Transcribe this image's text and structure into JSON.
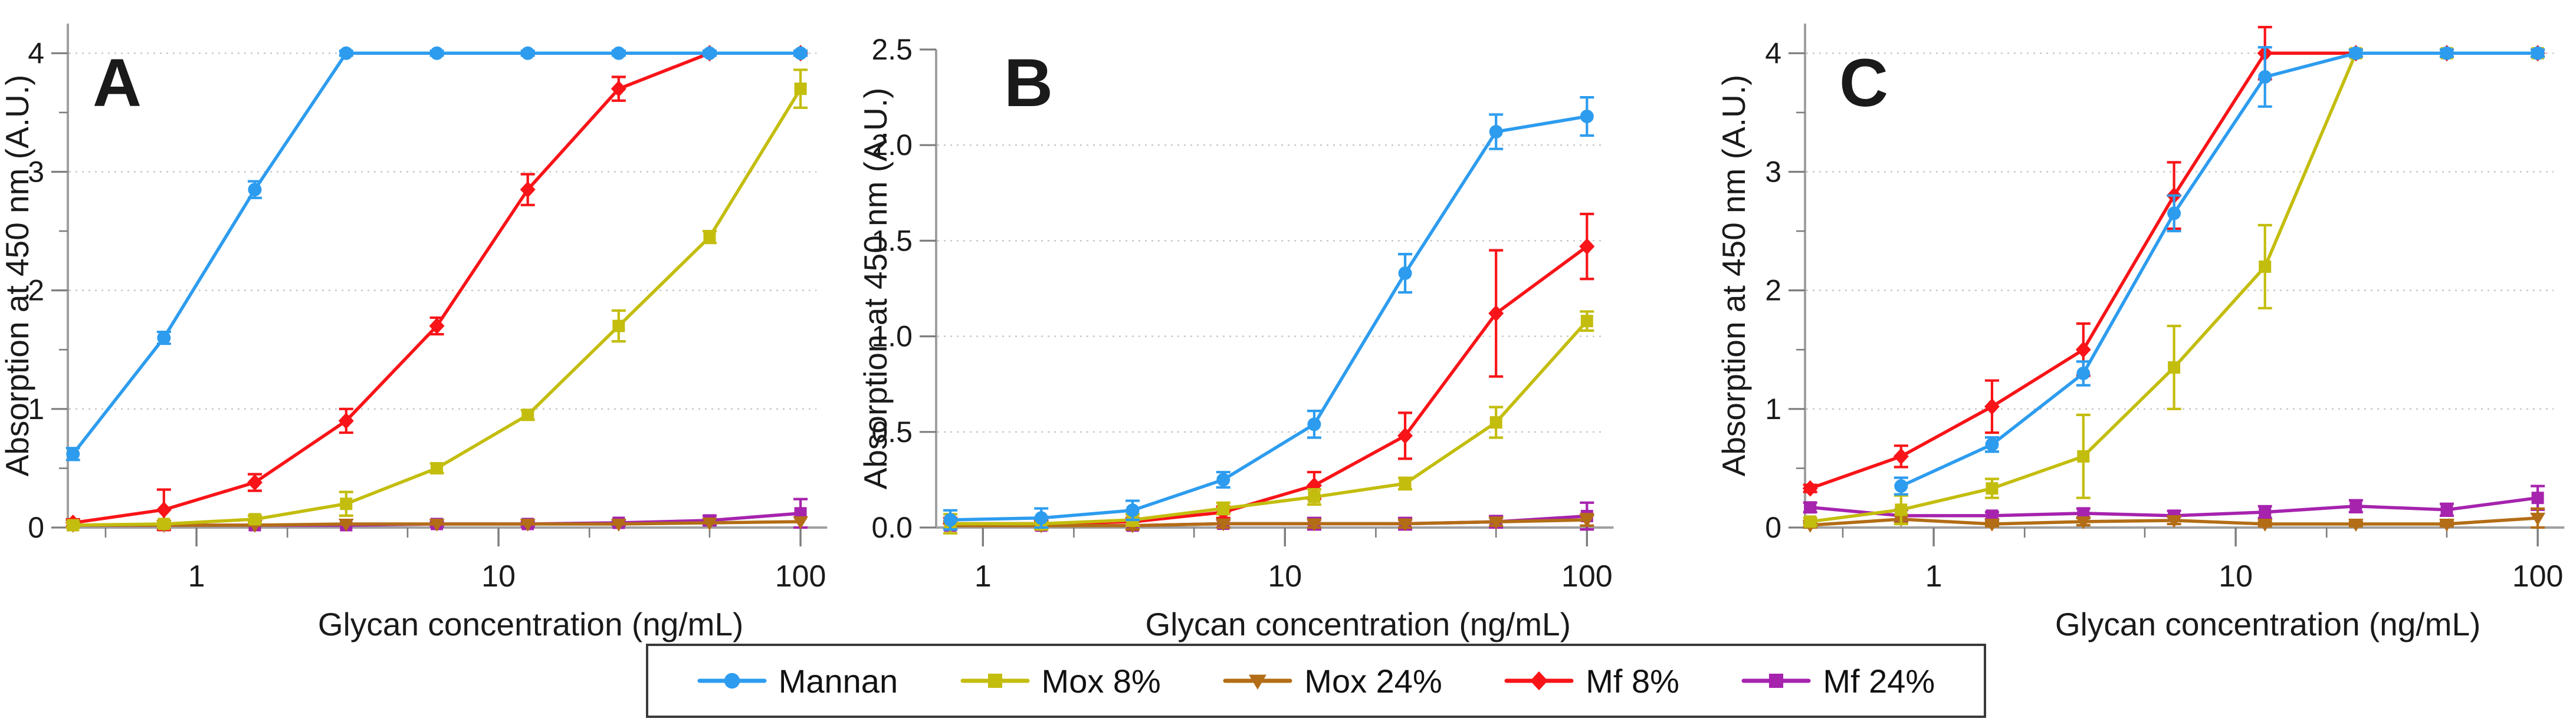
{
  "legend": {
    "entries": [
      {
        "label": "Mannan",
        "color": "#2d9cef",
        "marker": "circle"
      },
      {
        "label": "Mox 8%",
        "color": "#c3bd0e",
        "marker": "square"
      },
      {
        "label": "Mox 24%",
        "color": "#b36d16",
        "marker": "triangle-down"
      },
      {
        "label": "Mf 8%",
        "color": "#f81418",
        "marker": "diamond"
      },
      {
        "label": "Mf 24%",
        "color": "#a623ae",
        "marker": "square"
      }
    ]
  },
  "style": {
    "axis_color": "#a0a0a0",
    "tick_color": "#7d7d7d",
    "grid_color": "#c6c6c6",
    "label_color": "#1a1a1a",
    "background": "#ffffff"
  },
  "chart_data": {
    "type": "line",
    "xscale": "log",
    "xlabel": "Glycan concentration (ng/mL)",
    "ylabel": "Absorption at 450 nm (A.U.)",
    "legend_position": "bottom",
    "grid": "horizontal-dotted",
    "panels": [
      {
        "id": "A",
        "label": "A",
        "xlim": [
          0.375,
          113
        ],
        "ylim": [
          0,
          4.25
        ],
        "yticks": {
          "values": [
            0,
            1,
            2,
            3,
            4
          ],
          "labels": [
            "0",
            "1",
            "2",
            "3",
            "4"
          ],
          "minor_step": 0.5,
          "grid": [
            1,
            2,
            3,
            4
          ]
        },
        "xticks": {
          "major": [
            {
              "v": 1,
              "label": "1"
            },
            {
              "v": 10,
              "label": "10"
            },
            {
              "v": 100,
              "label": "100"
            }
          ],
          "minor": [
            0.5,
            2,
            5,
            20,
            50
          ]
        },
        "x": [
          0.39,
          0.78,
          1.56,
          3.13,
          6.25,
          12.5,
          25,
          50,
          100
        ],
        "series": [
          {
            "name": "Mannan",
            "values": [
              0.62,
              1.6,
              2.85,
              4.0,
              4.0,
              4.0,
              4.0,
              4.0,
              4.0
            ],
            "errors": [
              0.05,
              0.05,
              0.07,
              0.02,
              0.02,
              0.02,
              0.02,
              0.02,
              0.02
            ]
          },
          {
            "name": "Mox 8%",
            "values": [
              0.02,
              0.03,
              0.07,
              0.2,
              0.5,
              0.95,
              1.7,
              2.45,
              3.7
            ],
            "errors": [
              0.02,
              0.02,
              0.03,
              0.1,
              0.04,
              0.04,
              0.13,
              0.05,
              0.16
            ]
          },
          {
            "name": "Mox 24%",
            "values": [
              0.02,
              0.02,
              0.02,
              0.03,
              0.03,
              0.03,
              0.03,
              0.04,
              0.05
            ],
            "errors": [
              0.01,
              0.01,
              0.01,
              0.01,
              0.01,
              0.01,
              0.01,
              0.01,
              0.01
            ]
          },
          {
            "name": "Mf 8%",
            "values": [
              0.04,
              0.15,
              0.38,
              0.9,
              1.7,
              2.85,
              3.7,
              4.0,
              4.0
            ],
            "errors": [
              0.03,
              0.17,
              0.07,
              0.1,
              0.07,
              0.13,
              0.1,
              0.02,
              0.02
            ]
          },
          {
            "name": "Mf 24%",
            "values": [
              0.02,
              0.02,
              0.02,
              0.02,
              0.03,
              0.03,
              0.04,
              0.06,
              0.12
            ],
            "errors": [
              0.01,
              0.01,
              0.01,
              0.01,
              0.02,
              0.02,
              0.02,
              0.04,
              0.12
            ]
          }
        ]
      },
      {
        "id": "B",
        "label": "B",
        "xlim": [
          0.7,
          113
        ],
        "ylim": [
          0,
          2.5
        ],
        "yticks": {
          "values": [
            0,
            0.5,
            1,
            1.5,
            2,
            2.5
          ],
          "labels": [
            "0.0",
            "0.5",
            "1.0",
            "1.5",
            "2.0",
            "2.5"
          ],
          "minor_step": 0,
          "grid": [
            0.5,
            1,
            1.5,
            2
          ]
        },
        "xticks": {
          "major": [
            {
              "v": 1,
              "label": "1"
            },
            {
              "v": 10,
              "label": "10"
            },
            {
              "v": 100,
              "label": "100"
            }
          ],
          "minor": [
            2,
            5,
            20,
            50
          ]
        },
        "x": [
          0.78,
          1.56,
          3.13,
          6.25,
          12.5,
          25,
          50,
          100
        ],
        "series": [
          {
            "name": "Mannan",
            "values": [
              0.04,
              0.05,
              0.09,
              0.25,
              0.54,
              1.33,
              2.07,
              2.15
            ],
            "errors": [
              0.05,
              0.05,
              0.05,
              0.04,
              0.07,
              0.1,
              0.09,
              0.1
            ]
          },
          {
            "name": "Mox 8%",
            "values": [
              0.02,
              0.02,
              0.04,
              0.1,
              0.16,
              0.23,
              0.55,
              1.08
            ],
            "errors": [
              0.05,
              0.03,
              0.03,
              0.03,
              0.04,
              0.03,
              0.08,
              0.05
            ]
          },
          {
            "name": "Mox 24%",
            "values": [
              0.01,
              0.01,
              0.01,
              0.02,
              0.02,
              0.02,
              0.03,
              0.04
            ],
            "errors": [
              0.02,
              0.02,
              0.02,
              0.02,
              0.02,
              0.02,
              0.02,
              0.03
            ]
          },
          {
            "name": "Mf 8%",
            "values": [
              0.02,
              0.02,
              0.03,
              0.08,
              0.22,
              0.48,
              1.12,
              1.47
            ],
            "errors": [
              0.03,
              0.02,
              0.02,
              0.03,
              0.07,
              0.12,
              0.33,
              0.17
            ]
          },
          {
            "name": "Mf 24%",
            "values": [
              0.01,
              0.01,
              0.01,
              0.02,
              0.02,
              0.02,
              0.03,
              0.06
            ],
            "errors": [
              0.02,
              0.02,
              0.02,
              0.02,
              0.03,
              0.03,
              0.03,
              0.07
            ]
          }
        ]
      },
      {
        "id": "C",
        "label": "C",
        "xlim": [
          0.375,
          113
        ],
        "ylim": [
          0,
          4.25
        ],
        "yticks": {
          "values": [
            0,
            1,
            2,
            3,
            4
          ],
          "labels": [
            "0",
            "1",
            "2",
            "3",
            "4"
          ],
          "minor_step": 0.5,
          "grid": [
            1,
            2,
            3,
            4
          ]
        },
        "xticks": {
          "major": [
            {
              "v": 1,
              "label": "1"
            },
            {
              "v": 10,
              "label": "10"
            },
            {
              "v": 100,
              "label": "100"
            }
          ],
          "minor": [
            0.5,
            2,
            5,
            20,
            50
          ]
        },
        "x": [
          0.39,
          0.78,
          1.56,
          3.13,
          6.25,
          12.5,
          25,
          50,
          100
        ],
        "series": [
          {
            "name": "Mannan",
            "values": [
              null,
              0.35,
              0.7,
              1.3,
              2.65,
              3.8,
              4.0,
              4.0,
              4.0
            ],
            "errors": [
              0,
              0.07,
              0.06,
              0.1,
              0.15,
              0.25,
              0.03,
              0.03,
              0.03
            ]
          },
          {
            "name": "Mox 8%",
            "values": [
              0.05,
              0.15,
              0.33,
              0.6,
              1.35,
              2.2,
              4.0,
              4.0,
              4.0
            ],
            "errors": [
              0.03,
              0.12,
              0.08,
              0.35,
              0.35,
              0.35,
              0.03,
              0.03,
              0.03
            ]
          },
          {
            "name": "Mox 24%",
            "values": [
              0.02,
              0.07,
              0.03,
              0.05,
              0.06,
              0.03,
              0.03,
              0.03,
              0.08
            ],
            "errors": [
              0.02,
              0.03,
              0.02,
              0.03,
              0.03,
              0.02,
              0.02,
              0.02,
              0.08
            ]
          },
          {
            "name": "Mf 8%",
            "values": [
              0.33,
              0.6,
              1.02,
              1.5,
              2.8,
              4.0,
              4.0,
              4.0,
              4.0
            ],
            "errors": [
              0.03,
              0.09,
              0.22,
              0.22,
              0.28,
              0.22,
              0.03,
              0.03,
              0.03
            ]
          },
          {
            "name": "Mf 24%",
            "values": [
              0.17,
              0.1,
              0.1,
              0.12,
              0.1,
              0.13,
              0.18,
              0.15,
              0.25
            ],
            "errors": [
              0.04,
              0.05,
              0.03,
              0.04,
              0.04,
              0.05,
              0.05,
              0.05,
              0.1
            ]
          }
        ]
      }
    ]
  }
}
